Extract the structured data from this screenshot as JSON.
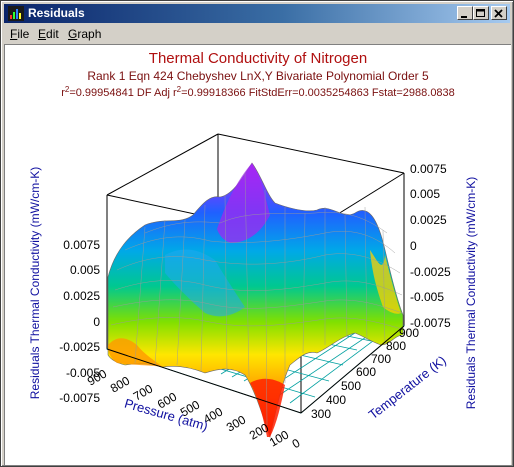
{
  "window": {
    "title": "Residuals"
  },
  "menu": {
    "items": [
      {
        "label": "File",
        "accel": "F"
      },
      {
        "label": "Edit",
        "accel": "E"
      },
      {
        "label": "Graph",
        "accel": "G"
      }
    ]
  },
  "plot": {
    "title": "Thermal Conductivity of Nitrogen",
    "subtitle": "Rank 1   Eqn 424   Chebyshev LnX,Y Bivariate Polynomial Order 5",
    "stats_r2_prefix": "r",
    "stats_r2_sup": "2",
    "stats_r2_value": "=0.99954841  DF Adj r",
    "stats_adj_sup": "2",
    "stats_rest": "=0.99918366  FitStdErr=0.0035254863  Fstat=2988.0838",
    "z_label_left": "Residuals Thermal Conductivity (mW/cm-K)",
    "z_label_right": "Residuals Thermal Conductivity (mW/cm-K)",
    "x_label": "Pressure (atm)",
    "y_label": "Temperature (K)",
    "z_ticks": [
      "0.0075",
      "0.005",
      "0.0025",
      "0",
      "-0.0025",
      "-0.005",
      "-0.0075"
    ],
    "x_ticks": [
      "900",
      "800",
      "700",
      "600",
      "500",
      "400",
      "300",
      "200",
      "100",
      "0"
    ],
    "y_ticks": [
      "300",
      "400",
      "500",
      "600",
      "700",
      "800",
      "900"
    ],
    "colors": {
      "title": "#b01010",
      "subtitle": "#7a1010",
      "axis_text": "#1010a0",
      "tick_text": "#000000",
      "grid": "#00a0a0"
    }
  }
}
